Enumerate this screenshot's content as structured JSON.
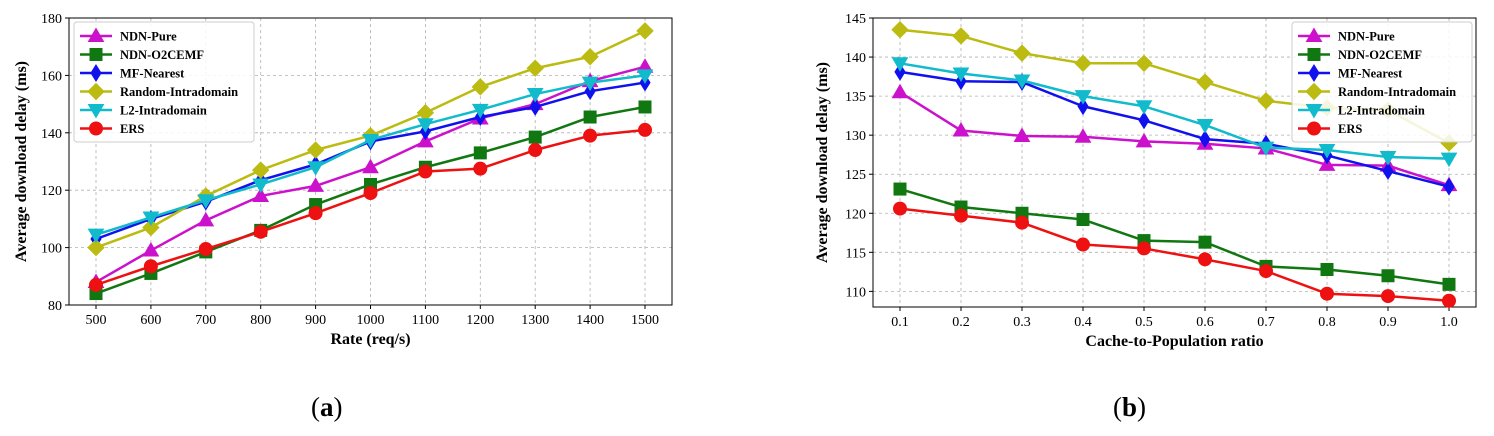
{
  "captions": {
    "a_open": "(",
    "a_letter": "a",
    "a_close": ")",
    "b_open": "(",
    "b_letter": "b",
    "b_close": ")"
  },
  "series_styles": [
    {
      "name": "NDN-Pure",
      "color": "#cc11cc",
      "marker": "triangle-up"
    },
    {
      "name": "NDN-O2CEMF",
      "color": "#117711",
      "marker": "square"
    },
    {
      "name": "MF-Nearest",
      "color": "#1111ee",
      "marker": "diamond-thin"
    },
    {
      "name": "Random-Intradomain",
      "color": "#bbbb11",
      "marker": "diamond"
    },
    {
      "name": "L2-Intradomain",
      "color": "#11bbcc",
      "marker": "triangle-down"
    },
    {
      "name": "ERS",
      "color": "#ee1111",
      "marker": "circle"
    }
  ],
  "chart_data": [
    {
      "type": "line",
      "title": "",
      "xlabel": "Rate (req/s)",
      "ylabel": "Average download delay (ms)",
      "x": [
        500,
        600,
        700,
        800,
        900,
        1000,
        1100,
        1200,
        1300,
        1400,
        1500
      ],
      "x_ticks": [
        "500",
        "600",
        "700",
        "800",
        "900",
        "1000",
        "1100",
        "1200",
        "1300",
        "1400",
        "1500"
      ],
      "ylim": [
        80,
        180
      ],
      "y_ticks": [
        80,
        100,
        120,
        140,
        160,
        180
      ],
      "grid": true,
      "legend": "top-left",
      "series": [
        {
          "name": "NDN-Pure",
          "values": [
            88,
            99,
            109.5,
            118,
            121.5,
            128,
            137,
            145,
            150,
            158,
            163
          ]
        },
        {
          "name": "NDN-O2CEMF",
          "values": [
            84,
            91,
            98.5,
            106,
            115,
            122,
            128,
            133,
            138.5,
            145.5,
            149
          ]
        },
        {
          "name": "MF-Nearest",
          "values": [
            103,
            110,
            116,
            123.5,
            129,
            137,
            140.5,
            145.5,
            149,
            154.5,
            157.5
          ]
        },
        {
          "name": "Random-Intradomain",
          "values": [
            100,
            107,
            118,
            127,
            134,
            139,
            147,
            156,
            162.5,
            166.5,
            175.5
          ]
        },
        {
          "name": "L2-Intradomain",
          "values": [
            104.5,
            110.5,
            116.5,
            122,
            128,
            137.5,
            143,
            148,
            153.5,
            157.5,
            160
          ]
        },
        {
          "name": "ERS",
          "values": [
            87,
            93.5,
            99.5,
            105.5,
            112,
            119,
            126.5,
            127.5,
            134,
            139,
            141
          ]
        }
      ]
    },
    {
      "type": "line",
      "title": "",
      "xlabel": "Cache-to-Population ratio",
      "ylabel": "Average download delay (ms)",
      "x": [
        0.1,
        0.2,
        0.3,
        0.4,
        0.5,
        0.6,
        0.7,
        0.8,
        0.9,
        1.0
      ],
      "x_ticks": [
        "0.1",
        "0.2",
        "0.3",
        "0.4",
        "0.5",
        "0.6",
        "0.7",
        "0.8",
        "0.9",
        "1.0"
      ],
      "ylim": [
        108,
        145
      ],
      "y_ticks": [
        110,
        115,
        120,
        125,
        130,
        135,
        140,
        145
      ],
      "grid": true,
      "legend": "top-right",
      "series": [
        {
          "name": "NDN-Pure",
          "values": [
            135.5,
            130.6,
            129.9,
            129.8,
            129.2,
            128.9,
            128.3,
            126.2,
            126.1,
            123.6
          ]
        },
        {
          "name": "NDN-O2CEMF",
          "values": [
            123.1,
            120.8,
            120.0,
            119.2,
            116.5,
            116.3,
            113.2,
            112.8,
            112.0,
            110.9
          ]
        },
        {
          "name": "MF-Nearest",
          "values": [
            138.1,
            136.9,
            136.8,
            133.7,
            131.9,
            129.5,
            128.9,
            127.4,
            125.4,
            123.4
          ]
        },
        {
          "name": "Random-Intradomain",
          "values": [
            143.5,
            142.7,
            140.5,
            139.2,
            139.2,
            136.8,
            134.4,
            133.5,
            133.2,
            129.0
          ]
        },
        {
          "name": "L2-Intradomain",
          "values": [
            139.2,
            137.9,
            137.0,
            135.0,
            133.7,
            131.3,
            128.4,
            128.1,
            127.2,
            127.0
          ]
        },
        {
          "name": "ERS",
          "values": [
            120.6,
            119.7,
            118.8,
            116.0,
            115.5,
            114.1,
            112.6,
            109.7,
            109.4,
            108.8
          ]
        }
      ]
    }
  ]
}
